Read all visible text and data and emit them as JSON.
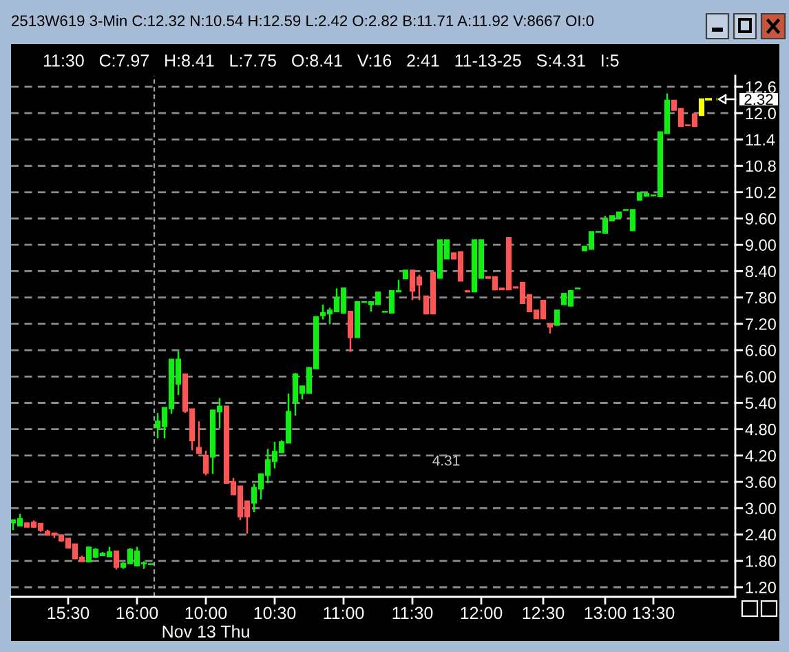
{
  "chart_data": {
    "type": "candlestick",
    "title": "2513W619 3-Min C:12.32 N:10.54 H:12.59 L:2.42 O:2.82 B:11.71 A:11.92 V:8667 OI:0",
    "subtitle": "11:30   C:7.97   H:8.41   L:7.75   O:8.41   V:16   2:41   11-13-25   S:4.31   I:5",
    "categories": [
      null,
      null,
      null,
      null,
      null,
      null,
      null,
      null,
      "15:30",
      null,
      null,
      null,
      null,
      null,
      null,
      null,
      null,
      null,
      "16:00",
      null,
      null,
      null,
      null,
      null,
      null,
      null,
      null,
      null,
      "10:00\nNov 13 Thu",
      null,
      null,
      null,
      null,
      null,
      null,
      null,
      null,
      null,
      "10:30",
      null,
      null,
      null,
      null,
      null,
      null,
      null,
      null,
      null,
      "11:00",
      null,
      null,
      null,
      null,
      null,
      null,
      null,
      null,
      null,
      "11:30",
      null,
      null,
      null,
      null,
      null,
      null,
      null,
      null,
      null,
      "12:00",
      null,
      null,
      null,
      null,
      null,
      null,
      null,
      null,
      "12:30",
      null,
      null,
      null,
      null,
      null,
      null,
      null,
      null,
      "13:00",
      null,
      null,
      null,
      null,
      null,
      null,
      "13:30",
      null,
      null,
      null,
      null,
      null,
      null,
      null
    ],
    "ohlc": [
      [
        2.67,
        2.73,
        2.5,
        2.73
      ],
      [
        2.6,
        2.87,
        2.6,
        2.76
      ],
      [
        2.66,
        2.68,
        2.56,
        2.57
      ],
      [
        2.68,
        2.72,
        2.55,
        2.57
      ],
      [
        2.65,
        2.66,
        2.46,
        2.5
      ],
      [
        2.47,
        2.51,
        2.39,
        2.39
      ],
      [
        2.43,
        2.43,
        2.32,
        2.41
      ],
      [
        2.39,
        2.39,
        2.23,
        2.26
      ],
      [
        2.31,
        2.31,
        2.1,
        2.1
      ],
      [
        2.18,
        2.18,
        1.85,
        1.85
      ],
      [
        1.88,
        1.92,
        1.79,
        1.79
      ],
      [
        1.78,
        2.11,
        1.78,
        2.11
      ],
      [
        1.89,
        2.09,
        1.86,
        2.06
      ],
      [
        1.92,
        2.0,
        1.92,
        1.97
      ],
      [
        1.9,
        2.12,
        1.9,
        2.0
      ],
      [
        2.02,
        2.02,
        1.6,
        1.66
      ],
      [
        1.66,
        1.77,
        1.62,
        1.74
      ],
      [
        1.74,
        2.09,
        1.74,
        2.06
      ],
      [
        1.69,
        2.12,
        1.69,
        2.02
      ],
      [
        1.74,
        1.79,
        1.62,
        1.75
      ],
      [
        1.72,
        1.73,
        1.72,
        1.73
      ],
      [
        4.84,
        5.17,
        4.59,
        4.98
      ],
      [
        4.86,
        5.29,
        4.59,
        5.29
      ],
      [
        5.27,
        6.39,
        5.15,
        6.39
      ],
      [
        5.83,
        6.58,
        5.58,
        6.39
      ],
      [
        6.05,
        6.05,
        5.17,
        5.21
      ],
      [
        5.26,
        5.26,
        4.32,
        4.54
      ],
      [
        4.38,
        4.98,
        4.25,
        4.25
      ],
      [
        4.2,
        4.31,
        3.75,
        3.8
      ],
      [
        4.17,
        5.23,
        3.78,
        5.23
      ],
      [
        5.2,
        5.51,
        4.82,
        5.32
      ],
      [
        5.32,
        5.32,
        3.57,
        3.57
      ],
      [
        3.6,
        3.69,
        3.31,
        3.31
      ],
      [
        3.5,
        3.5,
        2.73,
        2.81
      ],
      [
        3.16,
        3.16,
        2.42,
        2.81
      ],
      [
        3.12,
        3.56,
        2.91,
        3.47
      ],
      [
        3.44,
        3.78,
        3.2,
        3.78
      ],
      [
        3.75,
        4.35,
        3.57,
        4.1
      ],
      [
        4.07,
        4.51,
        3.91,
        4.29
      ],
      [
        4.27,
        4.55,
        4.27,
        4.51
      ],
      [
        4.49,
        5.61,
        4.49,
        5.2
      ],
      [
        5.41,
        6.08,
        5.11,
        6.05
      ],
      [
        5.62,
        5.78,
        5.48,
        5.78
      ],
      [
        5.62,
        6.2,
        5.62,
        6.2
      ],
      [
        6.18,
        7.36,
        6.18,
        7.36
      ],
      [
        7.39,
        7.64,
        7.3,
        7.45
      ],
      [
        7.43,
        7.57,
        7.19,
        7.51
      ],
      [
        7.48,
        8.01,
        7.48,
        7.79
      ],
      [
        7.45,
        8.01,
        7.45,
        8.01
      ],
      [
        7.48,
        7.48,
        6.56,
        6.89
      ],
      [
        6.89,
        7.7,
        6.89,
        7.7
      ],
      [
        7.69,
        7.7,
        7.69,
        7.7
      ],
      [
        7.64,
        7.7,
        7.48,
        7.7
      ],
      [
        7.64,
        7.92,
        7.64,
        7.92
      ],
      [
        7.47,
        7.48,
        7.47,
        7.48
      ],
      [
        7.45,
        7.95,
        7.45,
        7.95
      ],
      [
        7.93,
        8.2,
        7.93,
        7.95
      ],
      [
        8.23,
        8.42,
        8.23,
        8.42
      ],
      [
        8.42,
        8.42,
        7.74,
        7.95
      ],
      [
        8.26,
        8.32,
        7.74,
        8.09
      ],
      [
        7.83,
        7.83,
        7.43,
        7.43
      ],
      [
        8.37,
        8.37,
        7.43,
        7.43
      ],
      [
        8.24,
        9.11,
        8.24,
        9.11
      ],
      [
        8.68,
        9.11,
        8.68,
        9.11
      ],
      [
        8.81,
        8.81,
        8.68,
        8.68
      ],
      [
        8.84,
        8.84,
        8.18,
        8.18
      ],
      [
        7.95,
        7.95,
        7.93,
        7.93
      ],
      [
        7.93,
        9.11,
        7.93,
        9.11
      ],
      [
        8.24,
        9.11,
        8.24,
        9.11
      ],
      [
        8.27,
        8.27,
        8.24,
        8.24
      ],
      [
        8.27,
        8.27,
        7.98,
        7.98
      ],
      [
        8.01,
        8.01,
        7.98,
        7.98
      ],
      [
        9.16,
        9.16,
        7.98,
        7.98
      ],
      [
        8.04,
        8.04,
        8.02,
        8.02
      ],
      [
        8.14,
        8.14,
        7.67,
        7.67
      ],
      [
        7.86,
        7.86,
        7.48,
        7.48
      ],
      [
        7.51,
        7.51,
        7.32,
        7.32
      ],
      [
        7.73,
        7.73,
        7.32,
        7.32
      ],
      [
        7.2,
        7.2,
        6.98,
        7.13
      ],
      [
        7.17,
        7.51,
        7.17,
        7.51
      ],
      [
        7.64,
        7.89,
        7.64,
        7.89
      ],
      [
        7.61,
        7.95,
        7.61,
        7.95
      ],
      [
        8.0,
        8.01,
        8.0,
        8.01
      ],
      [
        8.87,
        8.96,
        8.87,
        8.96
      ],
      [
        8.9,
        9.3,
        8.9,
        9.3
      ],
      [
        9.29,
        9.3,
        9.29,
        9.3
      ],
      [
        9.27,
        9.66,
        9.27,
        9.58
      ],
      [
        9.55,
        9.66,
        9.55,
        9.66
      ],
      [
        9.62,
        9.74,
        9.62,
        9.74
      ],
      [
        9.79,
        9.8,
        9.79,
        9.8
      ],
      [
        9.33,
        9.8,
        9.33,
        9.8
      ],
      [
        10.02,
        10.19,
        10.02,
        10.19
      ],
      [
        10.11,
        10.17,
        10.11,
        10.17
      ],
      [
        10.12,
        10.13,
        10.12,
        10.13
      ],
      [
        10.1,
        11.57,
        10.1,
        11.57
      ],
      [
        11.54,
        12.45,
        11.54,
        12.29
      ],
      [
        12.29,
        12.29,
        12.07,
        12.07
      ],
      [
        12.1,
        12.1,
        11.7,
        11.7
      ],
      [
        11.73,
        11.73,
        11.72,
        11.72
      ],
      [
        11.98,
        11.98,
        11.7,
        11.7
      ],
      [
        11.95,
        12.32,
        11.95,
        12.32
      ]
    ],
    "colors": [
      "#10f010",
      "#10f010",
      "#ff5555",
      "#ff5555",
      "#ff5555",
      "#ff5555",
      "#ff5555",
      "#ff5555",
      "#ff5555",
      "#ff5555",
      "#ff5555",
      "#10f010",
      "#10f010",
      "#10f010",
      "#10f010",
      "#ff5555",
      "#10f010",
      "#10f010",
      "#10f010",
      "#10f010",
      "#10f010",
      "#10f010",
      "#10f010",
      "#10f010",
      "#10f010",
      "#ff5555",
      "#ff5555",
      "#ff5555",
      "#ff5555",
      "#10f010",
      "#10f010",
      "#ff5555",
      "#ff5555",
      "#ff5555",
      "#ff5555",
      "#10f010",
      "#10f010",
      "#10f010",
      "#10f010",
      "#10f010",
      "#10f010",
      "#10f010",
      "#10f010",
      "#10f010",
      "#10f010",
      "#10f010",
      "#10f010",
      "#10f010",
      "#10f010",
      "#ff5555",
      "#10f010",
      "#10f010",
      "#10f010",
      "#10f010",
      "#10f010",
      "#10f010",
      "#10f010",
      "#10f010",
      "#ff5555",
      "#ff5555",
      "#ff5555",
      "#ff5555",
      "#10f010",
      "#10f010",
      "#ff5555",
      "#ff5555",
      "#ff5555",
      "#10f010",
      "#10f010",
      "#ff5555",
      "#ff5555",
      "#ff5555",
      "#ff5555",
      "#ff5555",
      "#ff5555",
      "#ff5555",
      "#ff5555",
      "#ff5555",
      "#ff5555",
      "#10f010",
      "#10f010",
      "#10f010",
      "#10f010",
      "#10f010",
      "#10f010",
      "#10f010",
      "#10f010",
      "#10f010",
      "#10f010",
      "#10f010",
      "#10f010",
      "#10f010",
      "#10f010",
      "#10f010",
      "#10f010",
      "#10f010",
      "#ff5555",
      "#ff5555",
      "#ff5555",
      "#ff5555",
      "#ffff00"
    ],
    "ylim": [
      0.98,
      12.85
    ],
    "yticks": [
      {
        "value": 1.2,
        "label": "1.20"
      },
      {
        "value": 1.8,
        "label": "1.80"
      },
      {
        "value": 2.4,
        "label": "2.40"
      },
      {
        "value": 3.0,
        "label": "3.00"
      },
      {
        "value": 3.6,
        "label": "3.60"
      },
      {
        "value": 4.2,
        "label": "4.20"
      },
      {
        "value": 4.8,
        "label": "4.80"
      },
      {
        "value": 5.4,
        "label": "5.40"
      },
      {
        "value": 6.0,
        "label": "6.00"
      },
      {
        "value": 6.6,
        "label": "6.60"
      },
      {
        "value": 7.2,
        "label": "7.20"
      },
      {
        "value": 7.8,
        "label": "7.80"
      },
      {
        "value": 8.4,
        "label": "8.40"
      },
      {
        "value": 9.0,
        "label": "9.00"
      },
      {
        "value": 9.6,
        "label": "9.60"
      },
      10.2,
      10.8,
      11.4,
      {
        "value": 12.0,
        "label": "12.0"
      },
      12.6
    ],
    "grid": "y",
    "annotations": [
      "4.31",
      "2.32"
    ]
  }
}
